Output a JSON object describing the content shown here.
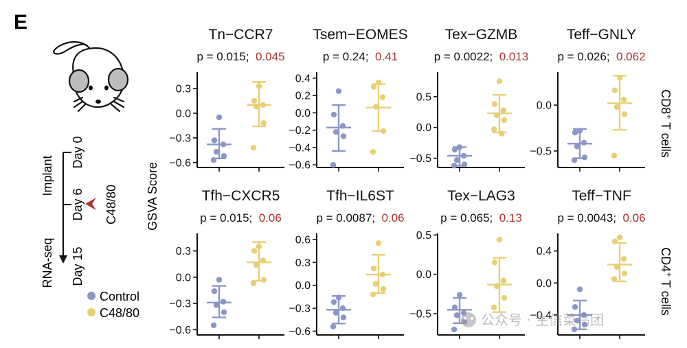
{
  "panel_label": "E",
  "colors": {
    "control": "#8c96c6",
    "c48_80": "#e8cf74",
    "q_value": "#a8322d",
    "text": "#111111"
  },
  "ylabel": "GSVA Score",
  "row_labels": [
    {
      "text": "CD8",
      "sup": "+",
      "rest": " T cells"
    },
    {
      "text": "CD4",
      "sup": "+",
      "rest": " T cells"
    }
  ],
  "timeline": {
    "implant": "Implant",
    "rnaseq": "RNA-seq",
    "day0": "Day 0",
    "day6": "Day 6",
    "day15": "Day 15",
    "treatment": "C48/80"
  },
  "legend": [
    {
      "label": "Control",
      "color": "#8c96c6"
    },
    {
      "label": "C48/80",
      "color": "#e8cf74"
    }
  ],
  "watermark": "公众号 · 生信菜鸟团",
  "chart_data": [
    {
      "type": "scatter",
      "title": "Tn−CCR7",
      "p": "p = 0.015;",
      "q": "0.045",
      "yticks": [
        "0.3",
        "0.0",
        "−0.3",
        "−0.6"
      ],
      "ytick_values": [
        0.3,
        0.0,
        -0.3,
        -0.6
      ],
      "ylim": [
        -0.66,
        0.5
      ],
      "groups": [
        {
          "name": "Control",
          "points": [
            -0.05,
            -0.33,
            -0.38,
            -0.47,
            -0.52,
            -0.57
          ],
          "mean": -0.38,
          "sd_low": -0.55,
          "sd_high": -0.19
        },
        {
          "name": "C48/80",
          "points": [
            0.33,
            0.15,
            0.1,
            0.08,
            -0.12,
            -0.42
          ],
          "mean": 0.1,
          "sd_low": -0.16,
          "sd_high": 0.38
        }
      ]
    },
    {
      "type": "scatter",
      "title": "Tsem−EOMES",
      "p": "p = 0.24;",
      "q": "0.41",
      "yticks": [
        "0.4",
        "0.2",
        "0.0",
        "−0.2",
        "−0.4",
        "−0.6"
      ],
      "ytick_values": [
        0.4,
        0.2,
        0.0,
        -0.2,
        -0.4,
        -0.6
      ],
      "ylim": [
        -0.63,
        0.47
      ],
      "groups": [
        {
          "name": "Control",
          "points": [
            0.25,
            -0.02,
            -0.15,
            -0.22,
            -0.27,
            -0.6
          ],
          "mean": -0.17,
          "sd_low": -0.44,
          "sd_high": 0.09
        },
        {
          "name": "C48/80",
          "points": [
            0.35,
            0.3,
            0.18,
            0.07,
            -0.21,
            -0.45
          ],
          "mean": 0.06,
          "sd_low": -0.21,
          "sd_high": 0.33
        }
      ]
    },
    {
      "type": "scatter",
      "title": "Tex−GZMB",
      "p": "p = 0.0022;",
      "q": "0.013",
      "yticks": [
        "0.5",
        "0.0",
        "−0.5"
      ],
      "ytick_values": [
        0.5,
        0.0,
        -0.5
      ],
      "ylim": [
        -0.65,
        0.9
      ],
      "groups": [
        {
          "name": "Control",
          "points": [
            -0.32,
            -0.36,
            -0.46,
            -0.53,
            -0.6,
            -0.62
          ],
          "mean": -0.46,
          "sd_low": -0.62,
          "sd_high": -0.32
        },
        {
          "name": "C48/80",
          "points": [
            0.75,
            0.38,
            0.28,
            0.2,
            0.12,
            -0.03,
            -0.1
          ],
          "mean": 0.23,
          "sd_low": -0.08,
          "sd_high": 0.53
        }
      ]
    },
    {
      "type": "scatter",
      "title": "Teff−GNLY",
      "p": "p = 0.026;",
      "q": "0.062",
      "yticks": [
        "0.0",
        "−0.5"
      ],
      "ytick_values": [
        0.0,
        -0.5
      ],
      "ylim": [
        -0.68,
        0.36
      ],
      "groups": [
        {
          "name": "Control",
          "points": [
            -0.28,
            -0.3,
            -0.41,
            -0.45,
            -0.57,
            -0.6
          ],
          "mean": -0.42,
          "sd_low": -0.58,
          "sd_high": -0.26
        },
        {
          "name": "C48/80",
          "points": [
            0.3,
            0.16,
            0.06,
            -0.02,
            -0.1,
            -0.55
          ],
          "mean": 0.02,
          "sd_low": -0.27,
          "sd_high": 0.32
        }
      ]
    },
    {
      "type": "scatter",
      "title": "Tfh−CXCR5",
      "p": "p = 0.015;",
      "q": "0.06",
      "yticks": [
        "0.3",
        "0.0",
        "−0.3",
        "−0.6"
      ],
      "ytick_values": [
        0.3,
        0.0,
        -0.3,
        -0.6
      ],
      "ylim": [
        -0.66,
        0.5
      ],
      "groups": [
        {
          "name": "Control",
          "points": [
            -0.03,
            -0.16,
            -0.28,
            -0.32,
            -0.4,
            -0.55
          ],
          "mean": -0.29,
          "sd_low": -0.46,
          "sd_high": -0.1
        },
        {
          "name": "C48/80",
          "points": [
            0.35,
            0.3,
            0.19,
            0.14,
            -0.03,
            -0.07
          ],
          "mean": 0.17,
          "sd_low": -0.04,
          "sd_high": 0.4
        }
      ]
    },
    {
      "type": "scatter",
      "title": "Tfh−IL6ST",
      "p": "p = 0.0087;",
      "q": "0.06",
      "yticks": [
        "0.6",
        "0.3",
        "0.0",
        "−0.3",
        "−0.6"
      ],
      "ytick_values": [
        0.6,
        0.3,
        0.0,
        -0.3,
        -0.6
      ],
      "ylim": [
        -0.65,
        0.68
      ],
      "groups": [
        {
          "name": "Control",
          "points": [
            -0.16,
            -0.22,
            -0.3,
            -0.36,
            -0.42,
            -0.54
          ],
          "mean": -0.32,
          "sd_low": -0.5,
          "sd_high": -0.14
        },
        {
          "name": "C48/80",
          "points": [
            0.55,
            0.22,
            0.14,
            0.02,
            -0.05,
            -0.12
          ],
          "mean": 0.14,
          "sd_low": -0.1,
          "sd_high": 0.4
        }
      ]
    },
    {
      "type": "scatter",
      "title": "Tex−LAG3",
      "p": "p = 0.065;",
      "q": "0.13",
      "yticks": [
        "0.5",
        "0.0",
        "−0.5"
      ],
      "ytick_values": [
        0.5,
        0.0,
        -0.5
      ],
      "ylim": [
        -0.77,
        0.52
      ],
      "groups": [
        {
          "name": "Control",
          "points": [
            -0.26,
            -0.42,
            -0.49,
            -0.52,
            -0.6,
            -0.7
          ],
          "mean": -0.45,
          "sd_low": -0.62,
          "sd_high": -0.3
        },
        {
          "name": "C48/80",
          "points": [
            0.44,
            0.15,
            -0.08,
            -0.15,
            -0.3,
            -0.42
          ],
          "mean": -0.13,
          "sd_low": -0.48,
          "sd_high": 0.21
        }
      ]
    },
    {
      "type": "scatter",
      "title": "Teff−TNF",
      "p": "p = 0.0043;",
      "q": "0.06",
      "yticks": [
        "0.4",
        "0.0",
        "−0.4"
      ],
      "ytick_values": [
        0.4,
        0.0,
        -0.4
      ],
      "ylim": [
        -0.65,
        0.62
      ],
      "groups": [
        {
          "name": "Control",
          "points": [
            -0.08,
            -0.3,
            -0.4,
            -0.47,
            -0.52,
            -0.58
          ],
          "mean": -0.4,
          "sd_low": -0.58,
          "sd_high": -0.22
        },
        {
          "name": "C48/80",
          "points": [
            0.57,
            0.52,
            0.3,
            0.2,
            0.12,
            0.05
          ],
          "mean": 0.23,
          "sd_low": 0.02,
          "sd_high": 0.5
        }
      ]
    }
  ]
}
